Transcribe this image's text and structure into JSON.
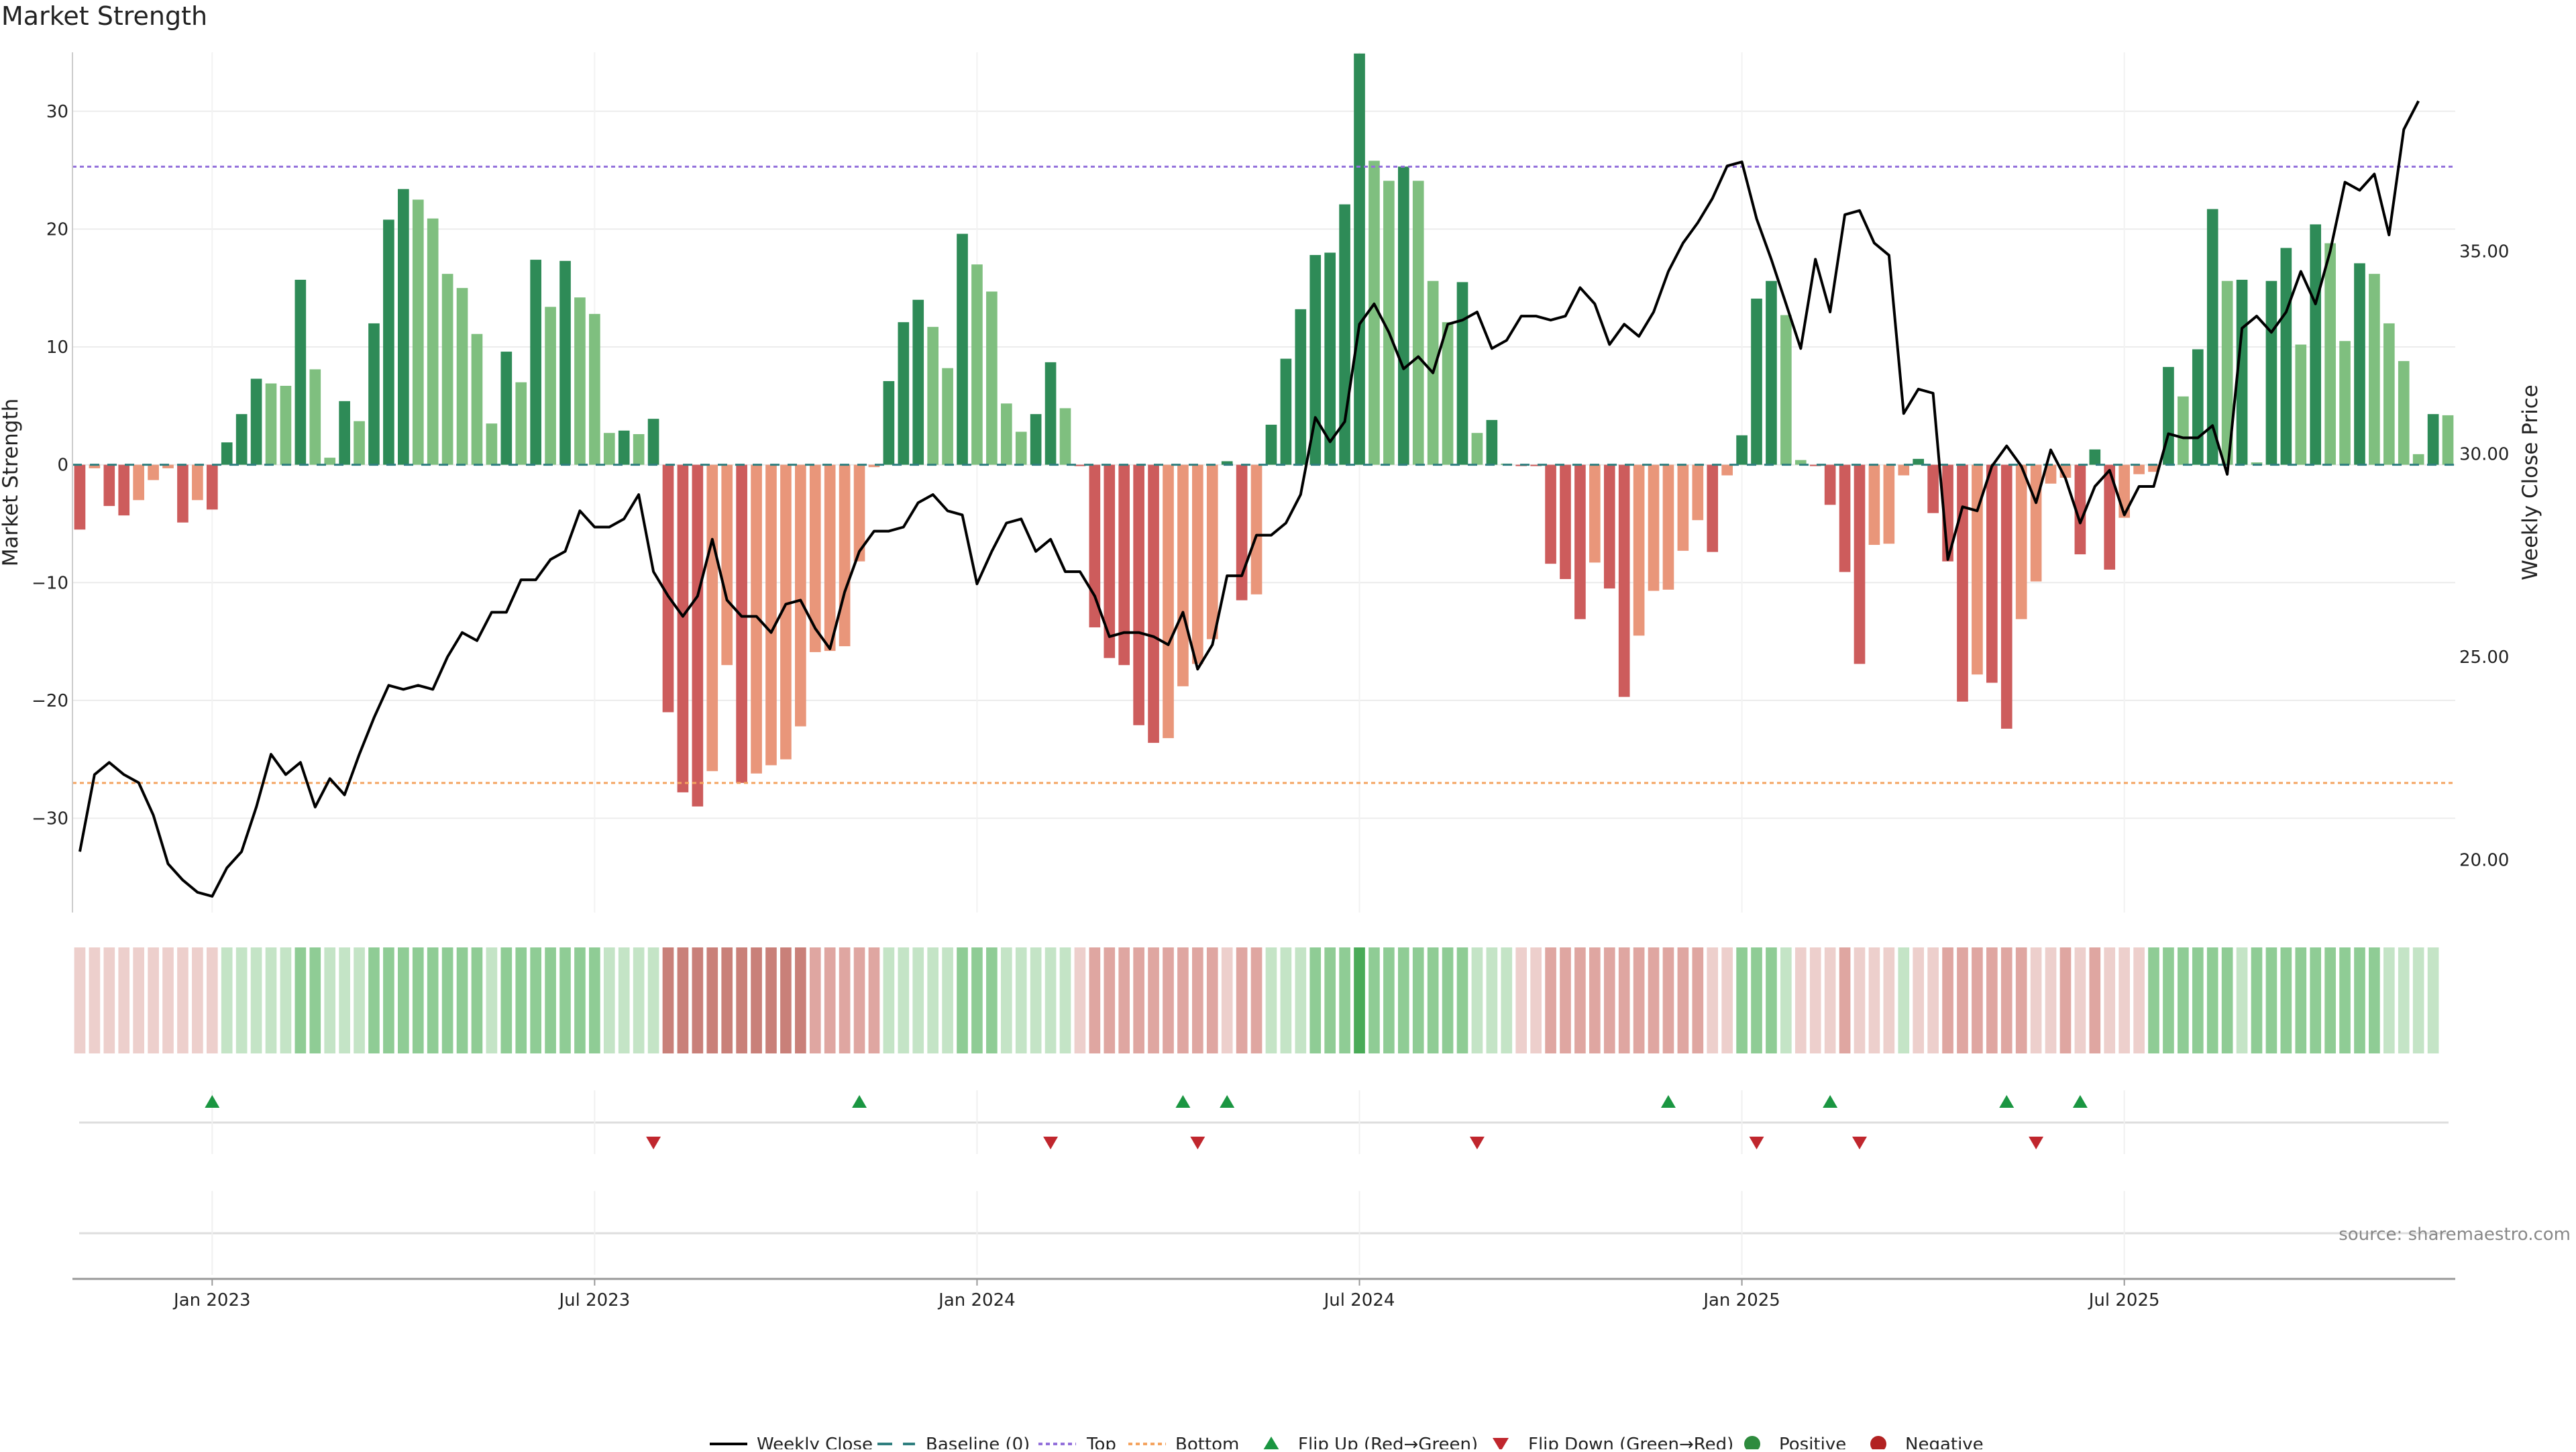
{
  "chart_data": {
    "type": "bar",
    "title": "Market Strength",
    "ylabel": "Market Strength",
    "y2label": "Weekly Close Price",
    "ylim": [
      -38,
      35
    ],
    "y2lim": [
      18.7,
      39.9
    ],
    "yticks": [
      -30,
      -20,
      -10,
      0,
      10,
      20,
      30
    ],
    "y2ticks": [
      "20.00",
      "25.00",
      "30.00",
      "35.00"
    ],
    "x_labels": [
      "Jan 2023",
      "Jul 2023",
      "Jan 2024",
      "Jul 2024",
      "Jan 2025",
      "Jul 2025"
    ],
    "x_label_weeks": [
      9,
      35,
      61,
      87,
      113,
      139
    ],
    "top_level": 25.3,
    "bottom_level": -27.0,
    "values": [
      -5.5,
      -0.3,
      -3.5,
      -4.3,
      -3.0,
      -1.3,
      -0.3,
      -4.9,
      -3.0,
      -3.8,
      1.9,
      4.3,
      7.3,
      6.9,
      6.7,
      15.7,
      8.1,
      0.6,
      5.4,
      3.7,
      12.0,
      20.8,
      23.4,
      22.5,
      20.9,
      16.2,
      15.0,
      11.1,
      3.5,
      9.6,
      7.0,
      17.4,
      13.4,
      17.3,
      14.2,
      12.8,
      2.7,
      2.9,
      2.6,
      3.9,
      -21.0,
      -27.8,
      -29.0,
      -26.0,
      -17.0,
      -27.0,
      -26.2,
      -25.5,
      -25.0,
      -22.2,
      -15.9,
      -15.8,
      -15.4,
      -8.2,
      -0.2,
      7.1,
      12.1,
      14.0,
      11.7,
      8.2,
      19.6,
      17.0,
      14.7,
      5.2,
      2.8,
      4.3,
      8.7,
      4.8,
      -0.1,
      -13.8,
      -16.4,
      -17.0,
      -22.1,
      -23.6,
      -23.2,
      -18.8,
      -16.9,
      -14.8,
      0.3,
      -11.5,
      -11.0,
      3.4,
      9.0,
      13.2,
      17.8,
      18.0,
      22.1,
      34.9,
      25.8,
      24.1,
      25.3,
      24.1,
      15.6,
      12.1,
      15.5,
      2.7,
      3.8,
      0.1,
      -0.1,
      -0.1,
      -8.4,
      -9.7,
      -13.1,
      -8.3,
      -10.5,
      -19.7,
      -14.5,
      -10.7,
      -10.6,
      -7.3,
      -4.7,
      -7.4,
      -0.9,
      2.5,
      14.1,
      15.6,
      12.7,
      0.4,
      -0.1,
      -3.4,
      -9.1,
      -16.9,
      -6.8,
      -6.7,
      -0.9,
      0.5,
      -4.1,
      -8.2,
      -20.1,
      -17.8,
      -18.5,
      -22.4,
      -13.1,
      -9.9,
      -1.6,
      -1.1,
      -7.6,
      1.3,
      -8.9,
      -4.5,
      -0.8,
      -0.6,
      8.3,
      5.8,
      9.8,
      21.7,
      15.6,
      15.7,
      0.2,
      15.6,
      18.4,
      10.2,
      20.4,
      18.8,
      10.5,
      17.1,
      16.2,
      12.0,
      8.8,
      0.9,
      4.3,
      4.2
    ],
    "price": [
      20.2,
      22.1,
      22.4,
      22.1,
      21.9,
      21.1,
      19.9,
      19.5,
      19.2,
      19.1,
      19.8,
      20.2,
      21.3,
      22.6,
      22.1,
      22.4,
      21.3,
      22.0,
      21.6,
      22.6,
      23.5,
      24.3,
      24.2,
      24.3,
      24.2,
      25.0,
      25.6,
      25.4,
      26.1,
      26.1,
      26.9,
      26.9,
      27.4,
      27.6,
      28.6,
      28.2,
      28.2,
      28.4,
      29.0,
      27.1,
      26.5,
      26.0,
      26.5,
      27.9,
      26.4,
      26.0,
      26.0,
      25.6,
      26.3,
      26.4,
      25.7,
      25.2,
      26.6,
      27.6,
      28.1,
      28.1,
      28.2,
      28.8,
      29.0,
      28.6,
      28.5,
      26.8,
      27.6,
      28.3,
      28.4,
      27.6,
      27.9,
      27.1,
      27.1,
      26.5,
      25.5,
      25.6,
      25.6,
      25.5,
      25.3,
      26.1,
      24.7,
      25.3,
      27.0,
      27.0,
      28.0,
      28.0,
      28.3,
      29.0,
      30.9,
      30.3,
      30.8,
      33.2,
      33.7,
      33.0,
      32.1,
      32.4,
      32.0,
      33.2,
      33.3,
      33.5,
      32.6,
      32.8,
      33.4,
      33.4,
      33.3,
      33.4,
      34.1,
      33.7,
      32.7,
      33.2,
      32.9,
      33.5,
      34.5,
      35.2,
      35.7,
      36.3,
      37.1,
      37.2,
      35.8,
      34.8,
      33.7,
      32.6,
      34.8,
      33.5,
      35.9,
      36.0,
      35.2,
      34.9,
      31.0,
      31.6,
      31.5,
      27.4,
      28.7,
      28.6,
      29.7,
      30.2,
      29.7,
      28.8,
      30.1,
      29.4,
      28.3,
      29.2,
      29.6,
      28.5,
      29.2,
      29.2,
      30.5,
      30.4,
      30.4,
      30.7,
      29.5,
      33.1,
      33.4,
      33.0,
      33.5,
      34.5,
      33.7,
      35.0,
      36.7,
      36.5,
      36.9,
      35.4,
      38.0,
      38.7
    ],
    "shade_levels": [
      -1,
      -1,
      -1,
      -1,
      -1,
      -1,
      -1,
      -1,
      -1,
      -1,
      1,
      1,
      1,
      1,
      1,
      2,
      2,
      1,
      1,
      1,
      2,
      2,
      2,
      2,
      2,
      2,
      2,
      2,
      1,
      2,
      2,
      2,
      2,
      2,
      2,
      2,
      1,
      1,
      1,
      1,
      -3,
      -3,
      -3,
      -3,
      -3,
      -3,
      -3,
      -3,
      -3,
      -3,
      -2,
      -2,
      -2,
      -2,
      -2,
      1,
      1,
      1,
      1,
      1,
      2,
      2,
      2,
      1,
      1,
      1,
      1,
      1,
      -1,
      -2,
      -2,
      -2,
      -2,
      -2,
      -2,
      -2,
      -2,
      -2,
      -1,
      -2,
      -2,
      1,
      1,
      1,
      2,
      2,
      2,
      3,
      2,
      2,
      2,
      2,
      2,
      2,
      2,
      1,
      1,
      1,
      -1,
      -1,
      -2,
      -2,
      -2,
      -2,
      -2,
      -2,
      -2,
      -2,
      -2,
      -2,
      -2,
      -1,
      -1,
      2,
      2,
      2,
      1,
      -1,
      -1,
      -1,
      -2,
      -1,
      -1,
      -1,
      1,
      -1,
      -1,
      -2,
      -2,
      -2,
      -2,
      -2,
      -2,
      -1,
      -1,
      -2,
      -1,
      -2,
      -1,
      -1,
      -1,
      2,
      2,
      2,
      2,
      2,
      2,
      1,
      2,
      2,
      2,
      2,
      2,
      2,
      2,
      2,
      2,
      1,
      1,
      1,
      1
    ],
    "flip_up_weeks": [
      9,
      53,
      75,
      78,
      108,
      119,
      131,
      136
    ],
    "flip_down_weeks": [
      39,
      66,
      76,
      95,
      114,
      121,
      133
    ],
    "legend": [
      "Weekly Close",
      "Baseline (0)",
      "Top",
      "Bottom",
      "Flip Up (Red→Green)",
      "Flip Down (Green→Red)",
      "Positive",
      "Negative"
    ],
    "colors": {
      "dark_green": "#2e8b57",
      "light_green": "#7fbf7f",
      "dark_red": "#cd5c5c",
      "light_red": "#e9967a",
      "price_line": "#000000",
      "top_line": "#9370db",
      "bottom_line": "#f4a460",
      "baseline": "#2f7f7f",
      "flip_up": "#1a9641",
      "flip_down": "#c0262d"
    }
  },
  "source_note": "source: sharemaestro.com"
}
